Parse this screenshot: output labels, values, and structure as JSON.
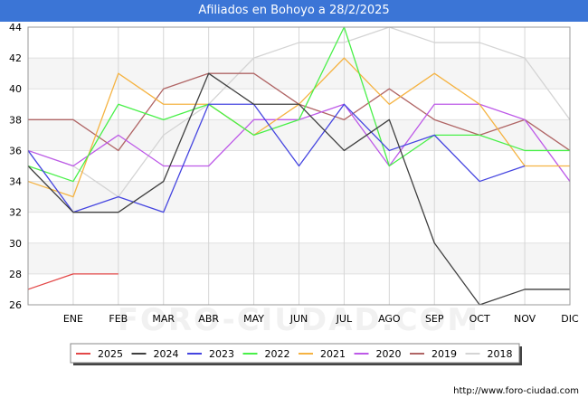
{
  "chart_data": {
    "type": "line",
    "title": "Afiliados en Bohoyo a 28/2/2025",
    "xlabel": "",
    "ylabel": "",
    "categories": [
      "",
      "ENE",
      "FEB",
      "MAR",
      "ABR",
      "MAY",
      "JUN",
      "JUL",
      "AGO",
      "SEP",
      "OCT",
      "NOV",
      "DIC"
    ],
    "ylim": [
      26,
      44
    ],
    "yticks": [
      26,
      28,
      30,
      32,
      34,
      36,
      38,
      40,
      42,
      44
    ],
    "grid": true,
    "legend_position": "bottom",
    "series": [
      {
        "name": "2018",
        "color": "#d4d4d4",
        "values": [
          36,
          35,
          33,
          37,
          39,
          42,
          43,
          43,
          44,
          43,
          43,
          42,
          38
        ]
      },
      {
        "name": "2019",
        "color": "#b06565",
        "values": [
          38,
          38,
          36,
          40,
          41,
          41,
          39,
          38,
          40,
          38,
          37,
          38,
          36
        ]
      },
      {
        "name": "2020",
        "color": "#bd59e8",
        "values": [
          36,
          35,
          37,
          35,
          35,
          38,
          38,
          39,
          35,
          39,
          39,
          38,
          34
        ]
      },
      {
        "name": "2021",
        "color": "#f5b342",
        "values": [
          34,
          33,
          41,
          39,
          39,
          37,
          39,
          42,
          39,
          41,
          39,
          35,
          35
        ]
      },
      {
        "name": "2022",
        "color": "#48f048",
        "values": [
          35,
          34,
          39,
          38,
          39,
          37,
          38,
          44,
          35,
          37,
          37,
          36,
          36
        ]
      },
      {
        "name": "2023",
        "color": "#4545e0",
        "values": [
          36,
          32,
          33,
          32,
          39,
          39,
          35,
          39,
          36,
          37,
          34,
          35,
          null
        ]
      },
      {
        "name": "2024",
        "color": "#3f3f3f",
        "values": [
          35,
          32,
          32,
          34,
          41,
          39,
          39,
          36,
          38,
          30,
          26,
          27,
          27
        ]
      },
      {
        "name": "2025",
        "color": "#e34848",
        "values": [
          27,
          28,
          28,
          null,
          null,
          null,
          null,
          null,
          null,
          null,
          null,
          null,
          null
        ]
      }
    ],
    "legend_order": [
      "2025",
      "2024",
      "2023",
      "2022",
      "2021",
      "2020",
      "2019",
      "2018"
    ]
  },
  "watermark": "FORO-CIUDAD.COM",
  "source_url": "http://www.foro-ciudad.com"
}
